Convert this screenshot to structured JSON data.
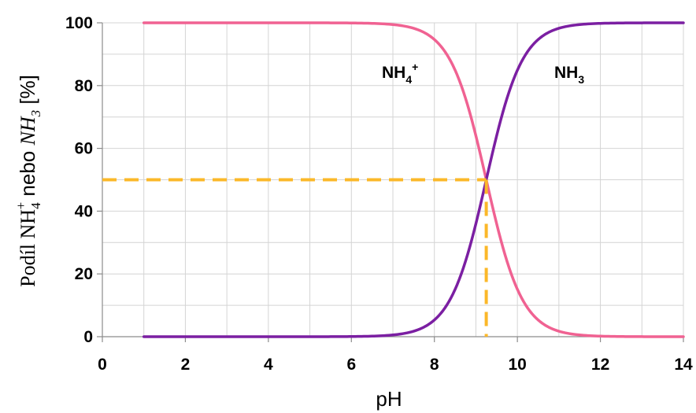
{
  "chart_data": {
    "type": "line",
    "xlabel": "pH",
    "ylabel": {
      "prefix": "Podíl NH",
      "sub": "4",
      "sup": "+",
      "middle": " nebo ",
      "alt": "NH",
      "alt_sub": "3",
      "suffix": " [%]"
    },
    "xlim": [
      0,
      14
    ],
    "ylim": [
      0,
      100
    ],
    "x_ticks": [
      0,
      2,
      4,
      6,
      8,
      10,
      12,
      14
    ],
    "y_ticks": [
      0,
      20,
      40,
      60,
      80,
      100
    ],
    "grid": true,
    "x_range": [
      1,
      14
    ],
    "pKa": 9.25,
    "series": [
      {
        "name_base": "NH",
        "name_sub": "4",
        "name_sup": "+",
        "color": "#f06292",
        "type": "acid-fraction"
      },
      {
        "name_base": "NH",
        "name_sub": "3",
        "color": "#7b1fa2",
        "type": "base-fraction"
      }
    ],
    "reference": {
      "x": 9.25,
      "y": 50,
      "color": "#fbb829"
    }
  }
}
